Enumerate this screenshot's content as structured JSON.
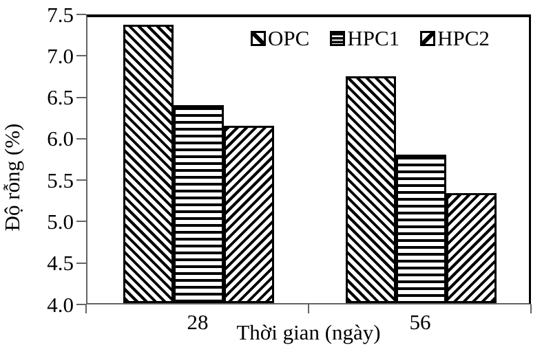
{
  "chart_data": {
    "type": "bar",
    "title": "",
    "categories": [
      "28",
      "56"
    ],
    "series": [
      {
        "name": "OPC",
        "pattern": "diagonal-down",
        "values": [
          7.36,
          6.74
        ]
      },
      {
        "name": "HPC1",
        "pattern": "horizontal",
        "values": [
          6.39,
          5.79
        ]
      },
      {
        "name": "HPC2",
        "pattern": "diagonal-up",
        "values": [
          6.14,
          5.33
        ]
      }
    ],
    "xlabel": "Thời gian (ngày)",
    "ylabel": "Độ rỗng (%)",
    "ylim": [
      4.0,
      7.5
    ],
    "yticks": [
      "7.5",
      "7.0",
      "6.5",
      "6.0",
      "5.5",
      "5.0",
      "4.5",
      "4.0"
    ],
    "grid": false,
    "legend_position": "top-inside",
    "colors": {
      "foreground": "#000000",
      "background": "#ffffff"
    }
  }
}
